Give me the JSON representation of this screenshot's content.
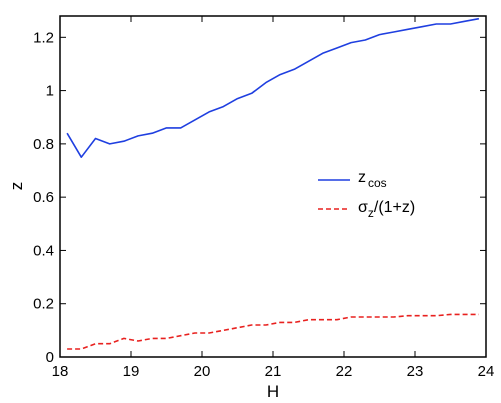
{
  "chart_data": {
    "type": "line",
    "xlabel": "H",
    "ylabel": "z",
    "xlim": [
      18,
      24
    ],
    "ylim": [
      0,
      1.28
    ],
    "xticks": [
      "18",
      "19",
      "20",
      "21",
      "22",
      "23",
      "24"
    ],
    "yticks": [
      "0",
      "0.2",
      "0.4",
      "0.6",
      "0.8",
      "1",
      "1.2"
    ],
    "legend_position": "right-middle",
    "grid": false,
    "series": [
      {
        "name": "z_cos",
        "legend_main": "z",
        "legend_sub": "cos",
        "color": "#1f3fe0",
        "line_style": "solid",
        "x": [
          18.1,
          18.3,
          18.5,
          18.7,
          18.9,
          19.1,
          19.3,
          19.5,
          19.7,
          19.9,
          20.1,
          20.3,
          20.5,
          20.7,
          20.9,
          21.1,
          21.3,
          21.5,
          21.7,
          21.9,
          22.1,
          22.3,
          22.5,
          22.7,
          22.9,
          23.1,
          23.3,
          23.5,
          23.7,
          23.9
        ],
        "y": [
          0.84,
          0.75,
          0.82,
          0.8,
          0.81,
          0.83,
          0.84,
          0.86,
          0.86,
          0.89,
          0.92,
          0.94,
          0.97,
          0.99,
          1.03,
          1.06,
          1.08,
          1.11,
          1.14,
          1.16,
          1.18,
          1.19,
          1.21,
          1.22,
          1.23,
          1.24,
          1.25,
          1.25,
          1.26,
          1.27
        ]
      },
      {
        "name": "sigma_z/(1+z)",
        "legend_main": "σ",
        "legend_sub": "z",
        "legend_suffix": "/(1+z)",
        "color": "#e8211f",
        "line_style": "dashed",
        "x": [
          18.1,
          18.3,
          18.5,
          18.7,
          18.9,
          19.1,
          19.3,
          19.5,
          19.7,
          19.9,
          20.1,
          20.3,
          20.5,
          20.7,
          20.9,
          21.1,
          21.3,
          21.5,
          21.7,
          21.9,
          22.1,
          22.3,
          22.5,
          22.7,
          22.9,
          23.1,
          23.3,
          23.5,
          23.7,
          23.9
        ],
        "y": [
          0.03,
          0.03,
          0.05,
          0.05,
          0.07,
          0.06,
          0.07,
          0.07,
          0.08,
          0.09,
          0.09,
          0.1,
          0.11,
          0.12,
          0.12,
          0.13,
          0.13,
          0.14,
          0.14,
          0.14,
          0.15,
          0.15,
          0.15,
          0.15,
          0.155,
          0.155,
          0.155,
          0.16,
          0.16,
          0.16
        ]
      }
    ]
  }
}
